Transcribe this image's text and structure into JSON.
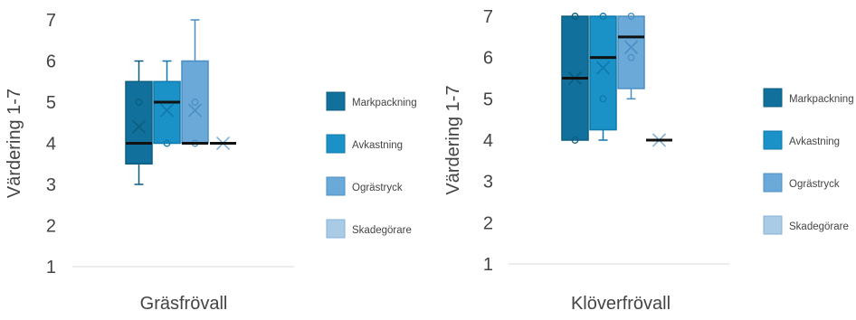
{
  "colors": {
    "series": [
      "#11719c",
      "#1a91c7",
      "#6aa9d8",
      "#a9cbe6"
    ],
    "series_edge": [
      "#0b5d80",
      "#0e79ab",
      "#4a8fc4",
      "#86b2d8"
    ],
    "median": "#111111",
    "text": "#444444",
    "axis": "#d9d9d9"
  },
  "chart_data": [
    {
      "type": "box",
      "title": "",
      "xlabel": "Gräsfrövall",
      "ylabel": "Värdering 1-7",
      "ylim": [
        1,
        7
      ],
      "yticks": [
        1,
        2,
        3,
        4,
        5,
        6,
        7
      ],
      "grid": false,
      "legend": "right",
      "series": [
        {
          "name": "Markpackning",
          "min": 3,
          "q1": 3.5,
          "median": 4,
          "q3": 5.5,
          "max": 6,
          "mean": 4.4,
          "points": [
            5
          ]
        },
        {
          "name": "Avkastning",
          "min": 4,
          "q1": 4,
          "median": 5,
          "q3": 5.5,
          "max": 6,
          "mean": 4.8,
          "points": [
            4
          ]
        },
        {
          "name": "Ogrästryck",
          "min": 4,
          "q1": 4,
          "median": 4,
          "q3": 6,
          "max": 7,
          "mean": 4.8,
          "points": [
            4,
            5
          ]
        },
        {
          "name": "Skadegörare",
          "min": 4,
          "q1": 4,
          "median": 4,
          "q3": 4,
          "max": 4,
          "mean": 4,
          "points": []
        }
      ]
    },
    {
      "type": "box",
      "title": "",
      "xlabel": "Klöverfrövall",
      "ylabel": "Värdering 1-7",
      "ylim": [
        1,
        7
      ],
      "yticks": [
        1,
        2,
        3,
        4,
        5,
        6,
        7
      ],
      "grid": false,
      "legend": "right",
      "series": [
        {
          "name": "Markpackning",
          "min": 4,
          "q1": 4,
          "median": 5.5,
          "q3": 7,
          "max": 7,
          "mean": 5.5,
          "points": [
            4,
            7
          ]
        },
        {
          "name": "Avkastning",
          "min": 4,
          "q1": 4.25,
          "median": 6,
          "q3": 7,
          "max": 7,
          "mean": 5.75,
          "points": [
            5,
            7
          ]
        },
        {
          "name": "Ogrästryck",
          "min": 5,
          "q1": 5.25,
          "median": 6.5,
          "q3": 7,
          "max": 7,
          "mean": 6.25,
          "points": [
            6,
            7
          ]
        },
        {
          "name": "Skadegörare",
          "min": 4,
          "q1": 4,
          "median": 4,
          "q3": 4,
          "max": 4,
          "mean": 4,
          "points": []
        }
      ]
    }
  ]
}
